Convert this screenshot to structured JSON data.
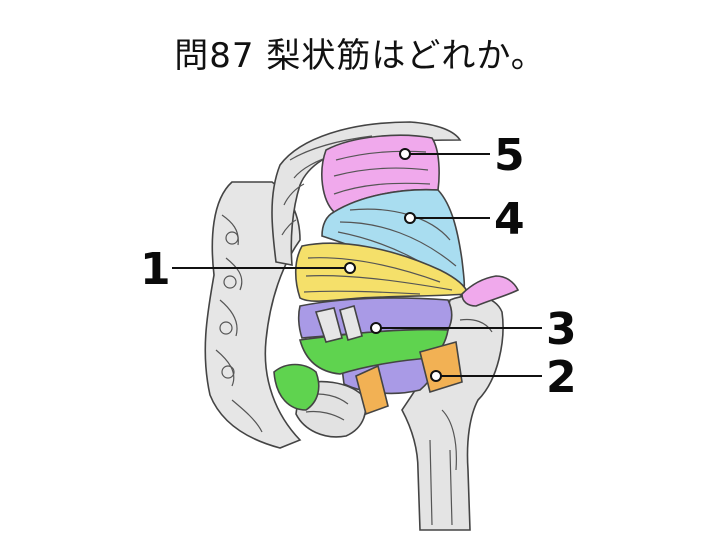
{
  "title": "問87 梨状筋はどれか。",
  "colors": {
    "muscle_1": "#f5e06a",
    "muscle_2": "#f2b154",
    "muscle_3_green": "#5fd34f",
    "muscle_3_purple": "#a99ae6",
    "muscle_4": "#a9ddf0",
    "muscle_5": "#f0a9ec",
    "bone": "#e6e6e6"
  },
  "labels": [
    {
      "id": "1",
      "text": "1"
    },
    {
      "id": "2",
      "text": "2"
    },
    {
      "id": "3",
      "text": "3"
    },
    {
      "id": "4",
      "text": "4"
    },
    {
      "id": "5",
      "text": "5"
    }
  ]
}
